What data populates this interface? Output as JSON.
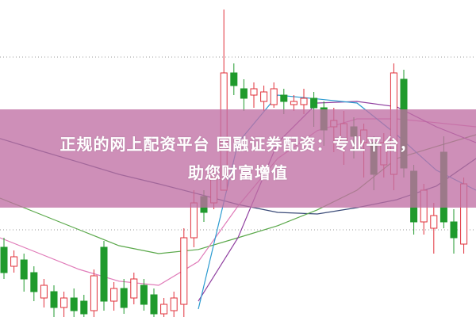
{
  "banner": {
    "line1": "正规的网上配资平台 国融证券配资：专业平台，",
    "line2": "助您财富增值"
  },
  "chart_data": {
    "type": "candlestick",
    "grid": "dotted horizontal",
    "gridlines": [
      82,
      27.5
    ],
    "ylim": [
      0,
      100
    ],
    "colors": {
      "up": "#e0303a",
      "down": "#1f9a2c",
      "ma_navy": "#3a4a78",
      "ma_green": "#5aa84a",
      "ma_pink": "#e07ab8",
      "ma_purple": "#9040a0",
      "ma_blue": "#2a9ad0",
      "banner": "#c070a4"
    },
    "candles": [
      [
        22,
        14,
        25,
        12
      ],
      [
        16,
        19,
        21,
        14
      ],
      [
        18,
        12,
        20,
        8
      ],
      [
        14,
        8,
        16,
        5
      ],
      [
        6,
        10,
        12,
        3
      ],
      [
        8,
        3,
        10,
        0
      ],
      [
        3,
        6,
        8,
        0
      ],
      [
        6,
        2,
        9,
        0
      ],
      [
        5,
        1,
        7,
        0
      ],
      [
        2,
        13,
        15,
        0
      ],
      [
        22,
        5,
        24,
        2
      ],
      [
        5,
        9,
        11,
        2
      ],
      [
        9,
        3,
        12,
        1
      ],
      [
        6,
        12,
        14,
        4
      ],
      [
        10,
        4,
        12,
        2
      ],
      [
        7,
        1,
        9,
        0
      ],
      [
        1,
        4,
        6,
        0
      ],
      [
        2,
        6,
        8,
        0
      ],
      [
        4,
        25,
        28,
        0
      ],
      [
        25,
        36,
        40,
        22
      ],
      [
        38,
        33,
        40,
        30
      ],
      [
        36,
        44,
        46,
        34
      ],
      [
        40,
        77,
        97,
        60
      ],
      [
        77,
        73,
        80,
        70
      ],
      [
        72,
        69,
        75,
        65
      ],
      [
        70,
        72,
        74,
        66
      ],
      [
        68,
        71,
        73,
        65
      ],
      [
        67,
        72,
        74,
        66
      ],
      [
        70,
        68,
        72,
        64
      ],
      [
        67,
        68,
        70,
        65
      ],
      [
        67,
        69,
        72,
        64
      ],
      [
        69,
        66,
        71,
        60
      ],
      [
        66,
        59,
        68,
        54
      ],
      [
        60,
        62,
        66,
        52
      ],
      [
        55,
        61,
        65,
        48
      ],
      [
        60,
        57,
        63,
        50
      ],
      [
        55,
        59,
        61,
        44
      ],
      [
        55,
        45,
        57,
        40
      ],
      [
        48,
        55,
        58,
        44
      ],
      [
        45,
        77,
        80,
        40
      ],
      [
        75,
        47,
        78,
        44
      ],
      [
        46,
        30,
        48,
        26
      ],
      [
        30,
        40,
        42,
        26
      ],
      [
        28,
        32,
        36,
        20
      ],
      [
        52,
        30,
        57,
        28
      ],
      [
        30,
        25,
        34,
        20
      ],
      [
        23,
        42,
        44,
        20
      ]
    ],
    "moving_averages": [
      {
        "color_key": "ma_navy",
        "values": [
          56.3,
          52.5,
          48.8,
          45,
          42,
          38.8,
          35.5,
          33,
          32.5,
          34.5,
          37,
          41.3,
          50
        ]
      },
      {
        "color_key": "ma_green",
        "values": [
          37.5,
          32.5,
          27.5,
          22.5,
          20,
          21.3,
          25,
          28.8,
          33.8,
          40,
          50,
          53.8,
          57.5
        ]
      },
      {
        "color_key": "ma_pink",
        "values": [
          25,
          20,
          15,
          11.3,
          10,
          17.5,
          35,
          50,
          58.8,
          62.5,
          62.5,
          61.3,
          60
        ]
      },
      {
        "color_key": "ma_purple",
        "values": [
          null,
          null,
          null,
          null,
          null,
          5,
          25,
          55,
          67.5,
          68,
          66.3,
          60,
          55
        ]
      },
      {
        "color_key": "ma_blue",
        "values": [
          null,
          null,
          null,
          null,
          null,
          2.5,
          55,
          70,
          68.8,
          67.5,
          57.5,
          46.3,
          40
        ]
      }
    ]
  }
}
